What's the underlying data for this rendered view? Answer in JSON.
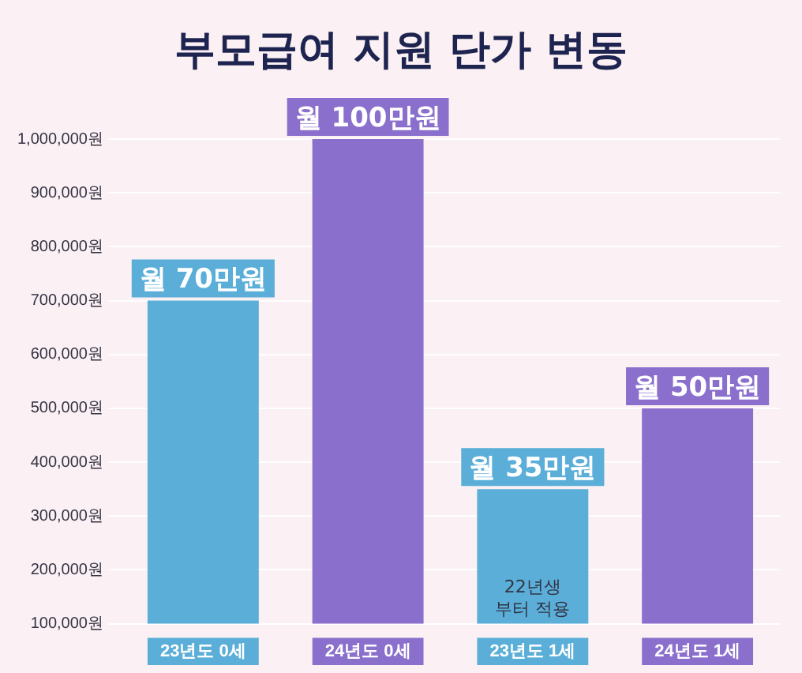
{
  "chart_data": {
    "type": "bar",
    "title": "부모급여 지원 단가 변동",
    "categories": [
      "23년도 0세",
      "24년도 0세",
      "23년도 1세",
      "24년도 1세"
    ],
    "values": [
      700000,
      1000000,
      350000,
      500000
    ],
    "colors": [
      "#5aaed8",
      "#8a6fcc",
      "#5aaed8",
      "#8a6fcc"
    ],
    "value_labels": [
      "월 70만원",
      "월 100만원",
      "월 35만원",
      "월 50만원"
    ],
    "ylim": [
      100000,
      1000000
    ],
    "yticks": [
      {
        "value": 100000,
        "label": "100,000원"
      },
      {
        "value": 200000,
        "label": "200,000원"
      },
      {
        "value": 300000,
        "label": "300,000원"
      },
      {
        "value": 400000,
        "label": "400,000원"
      },
      {
        "value": 500000,
        "label": "500,000원"
      },
      {
        "value": 600000,
        "label": "600,000원"
      },
      {
        "value": 700000,
        "label": "700,000원"
      },
      {
        "value": 800000,
        "label": "800,000원"
      },
      {
        "value": 900000,
        "label": "900,000원"
      },
      {
        "value": 1000000,
        "label": "1,000,000원"
      }
    ],
    "annotations": [
      "22년생 부터 적용"
    ],
    "grid": "y",
    "legend": false
  }
}
